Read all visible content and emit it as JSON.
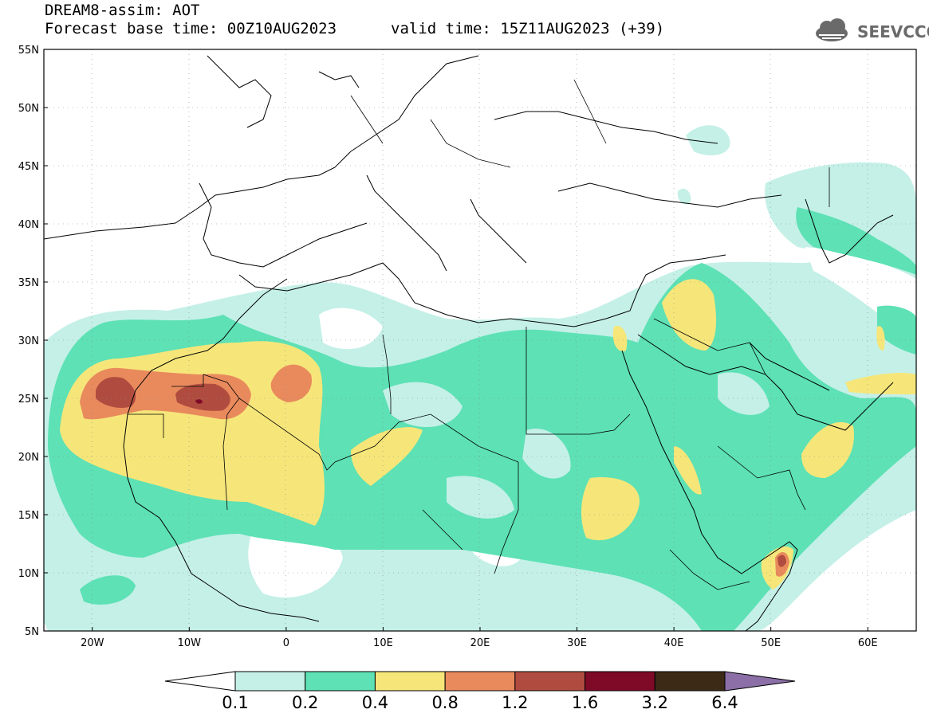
{
  "header": {
    "title": "DREAM8-assim: AOT",
    "base_time": "Forecast base time: 00Z10AUG2023",
    "valid_time": "valid time: 15Z11AUG2023 (+39)",
    "logo_text": "SEEVCCC"
  },
  "map": {
    "lon_range": [
      -25,
      65
    ],
    "lat_range": [
      5,
      55
    ],
    "lat_labels": [
      "55N",
      "50N",
      "45N",
      "40N",
      "35N",
      "30N",
      "25N",
      "20N",
      "15N",
      "10N",
      "5N"
    ],
    "lon_labels": [
      "20W",
      "10W",
      "0",
      "10E",
      "20E",
      "30E",
      "40E",
      "50E",
      "60E"
    ]
  },
  "legend": {
    "thresholds": [
      "0.1",
      "0.2",
      "0.4",
      "0.8",
      "1.2",
      "1.6",
      "3.2",
      "6.4"
    ],
    "colors": [
      "#ffffff",
      "#c4f0e7",
      "#5de1b5",
      "#f6e67a",
      "#e98a5d",
      "#b04c3f",
      "#7e0a27",
      "#3c2a17",
      "#8b6fa6"
    ]
  },
  "colors": {
    "aot_0_1": "#c4f0e7",
    "aot_0_2": "#5de1b5",
    "aot_0_4": "#f6e67a",
    "aot_0_8": "#e98a5d",
    "aot_1_2": "#b04c3f",
    "aot_1_6": "#7e0a27"
  }
}
